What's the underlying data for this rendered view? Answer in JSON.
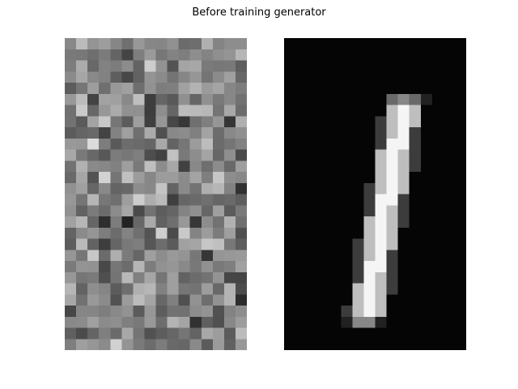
{
  "figure": {
    "title": "Before training generator"
  },
  "panels": [
    {
      "name": "generated-noise",
      "colormap": "gray",
      "rows": 28,
      "cols": 16
    },
    {
      "name": "real-digit",
      "colormap": "gray",
      "rows": 28,
      "cols": 16
    }
  ],
  "colors": {
    "background": "#ffffff",
    "panel_background": "#000000"
  }
}
